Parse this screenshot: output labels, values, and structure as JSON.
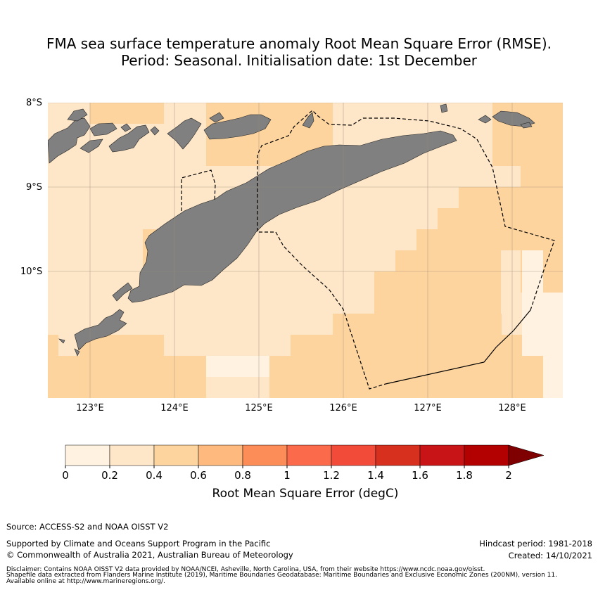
{
  "title": {
    "line1": "FMA sea surface temperature anomaly Root Mean Square Error (RMSE).",
    "line2": "Period: Seasonal. Initialisation date: 1st December"
  },
  "map": {
    "lat_labels": [
      "8°S",
      "9°S",
      "10°S"
    ],
    "lon_labels": [
      "123°E",
      "124°E",
      "125°E",
      "126°E",
      "127°E",
      "128°E"
    ],
    "colors": {
      "c0": "#fff2e0",
      "c1": "#fee6c8",
      "c2": "#fdd49e",
      "land": "#808080",
      "grid": "#9a8a78"
    }
  },
  "colorbar": {
    "ticks": [
      "0",
      "0.2",
      "0.4",
      "0.6",
      "0.8",
      "1",
      "1.2",
      "1.4",
      "1.6",
      "1.8",
      "2"
    ],
    "colors": [
      "#fff2e0",
      "#fee6c8",
      "#fdd49e",
      "#fdb97e",
      "#fc8d59",
      "#fb6a4a",
      "#f24b3a",
      "#d7301f",
      "#c81417",
      "#b30000",
      "#7f0000"
    ],
    "label": "Root Mean Square Error (degC)"
  },
  "footer": {
    "source": "Source: ACCESS-S2 and NOAA OISST V2",
    "supported": "Supported by Climate and Oceans Support Program in the Pacific",
    "copyright": "© Commonwealth of Australia 2021, Australian Bureau of Meteorology",
    "hindcast": "Hindcast period: 1981-2018",
    "created": "Created: 14/10/2021",
    "disclaimer1": "Disclaimer: Contains NOAA OISST V2 data provided by NOAA/NCEI, Asheville, North Carolina, USA, from their website https://www.ncdc.noaa.gov/oisst.",
    "disclaimer2": "Shapefile data extracted from Flanders Marine Institute (2019), Maritime Boundaries Geodatabase: Maritime Boundaries and Exclusive Economic Zones (200NM), version 11.",
    "disclaimer3": "Available online at http://www.marineregions.org/."
  }
}
